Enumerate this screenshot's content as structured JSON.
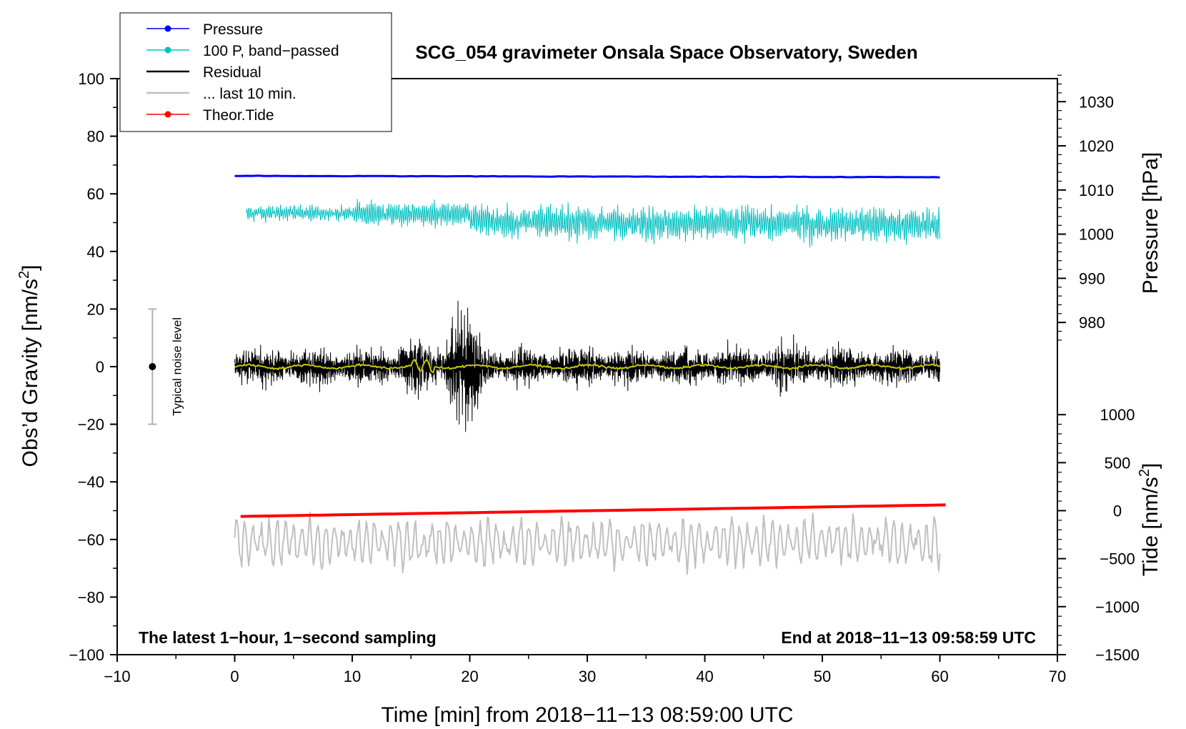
{
  "chart_data": {
    "type": "line",
    "title": "SCG_054 gravimeter Onsala Space Observatory, Sweden",
    "xlabel": "Time [min] from 2018−11−13 08:59:00 UTC",
    "ylabel_left": "Obs’d Gravity [nm/s",
    "ylabel_left_sup": "2",
    "ylabel_left_tail": "]",
    "ylabel_right_pressure": "Pressure [hPa]",
    "ylabel_right_tide": "Tide [nm/s",
    "ylabel_right_tide_sup": "2",
    "ylabel_right_tide_tail": "]",
    "xlim": [
      -10,
      70
    ],
    "ylim": [
      -100,
      100
    ],
    "x_ticks": [
      -10,
      0,
      10,
      20,
      30,
      40,
      50,
      60,
      70
    ],
    "x_tick_labels": [
      "−10",
      "0",
      "10",
      "20",
      "30",
      "40",
      "50",
      "60",
      "70"
    ],
    "y_ticks": [
      -100,
      -80,
      -60,
      -40,
      -20,
      0,
      20,
      40,
      60,
      80,
      100
    ],
    "y_tick_labels": [
      "−100",
      "−80",
      "−60",
      "−40",
      "−20",
      "0",
      "20",
      "40",
      "60",
      "80",
      "100"
    ],
    "pressure_axis": {
      "ticks": [
        980,
        990,
        1000,
        1010,
        1020,
        1030
      ],
      "tick_labels": [
        "980",
        "990",
        "1000",
        "1010",
        "1020",
        "1030"
      ],
      "gravity_at_1000": 46.0,
      "gravity_per_hpa": 1.533
    },
    "tide_axis": {
      "ticks": [
        -1500,
        -1000,
        -500,
        0,
        500,
        1000
      ],
      "tick_labels": [
        "−1500",
        "−1000",
        "−500",
        "0",
        "500",
        "1000"
      ],
      "gravity_at_0": -50.0,
      "gravity_per_unit": 0.03333
    },
    "legend": [
      {
        "label": "Pressure",
        "color": "#0000ff",
        "marker": true
      },
      {
        "label": "100 P, band−passed",
        "color": "#00c0c0",
        "marker": true
      },
      {
        "label": "Residual",
        "color": "#000000",
        "marker": false
      },
      {
        "label": "... last 10 min.",
        "color": "#c0c0c0",
        "marker": false
      },
      {
        "label": "Theor.Tide",
        "color": "#ff0000",
        "marker": true
      }
    ],
    "series": [
      {
        "name": "Pressure",
        "color": "#0000ff",
        "unit": "hPa",
        "x_range": [
          0,
          60
        ],
        "start_value": 1013.2,
        "end_value": 1012.9
      },
      {
        "name": "100 P, band-passed",
        "color": "#00c0c0",
        "unit": "nm/s2",
        "x_range": [
          1,
          60
        ],
        "center": 48,
        "amplitude_range": [
          33,
          60
        ]
      },
      {
        "name": "Residual",
        "color": "#000000",
        "unit": "nm/s2",
        "x_range": [
          0,
          60
        ],
        "center": 0,
        "amplitude_range": [
          -27,
          29
        ],
        "burst_minutes": [
          18,
          21
        ]
      },
      {
        "name": "Residual smoothed",
        "color": "#c8c800",
        "unit": "nm/s2",
        "x_range": [
          0,
          60
        ],
        "center": 0
      },
      {
        "name": "... last 10 min.",
        "color": "#c0c0c0",
        "unit": "nm/s2",
        "x_range": [
          0,
          60
        ],
        "center": -61,
        "amplitude_range": [
          -78,
          -49
        ]
      },
      {
        "name": "Theor.Tide",
        "color": "#ff0000",
        "unit": "nm/s2",
        "x_range": [
          0.5,
          60.5
        ],
        "start_value": -52,
        "end_value": -48
      }
    ],
    "noise_level": {
      "x": -7,
      "center": 0,
      "low": -20,
      "high": 20,
      "label": "Typical noise level"
    },
    "annotation_left": "The latest 1−hour, 1−second sampling",
    "annotation_right": "End at 2018−11−13 09:58:59 UTC"
  }
}
